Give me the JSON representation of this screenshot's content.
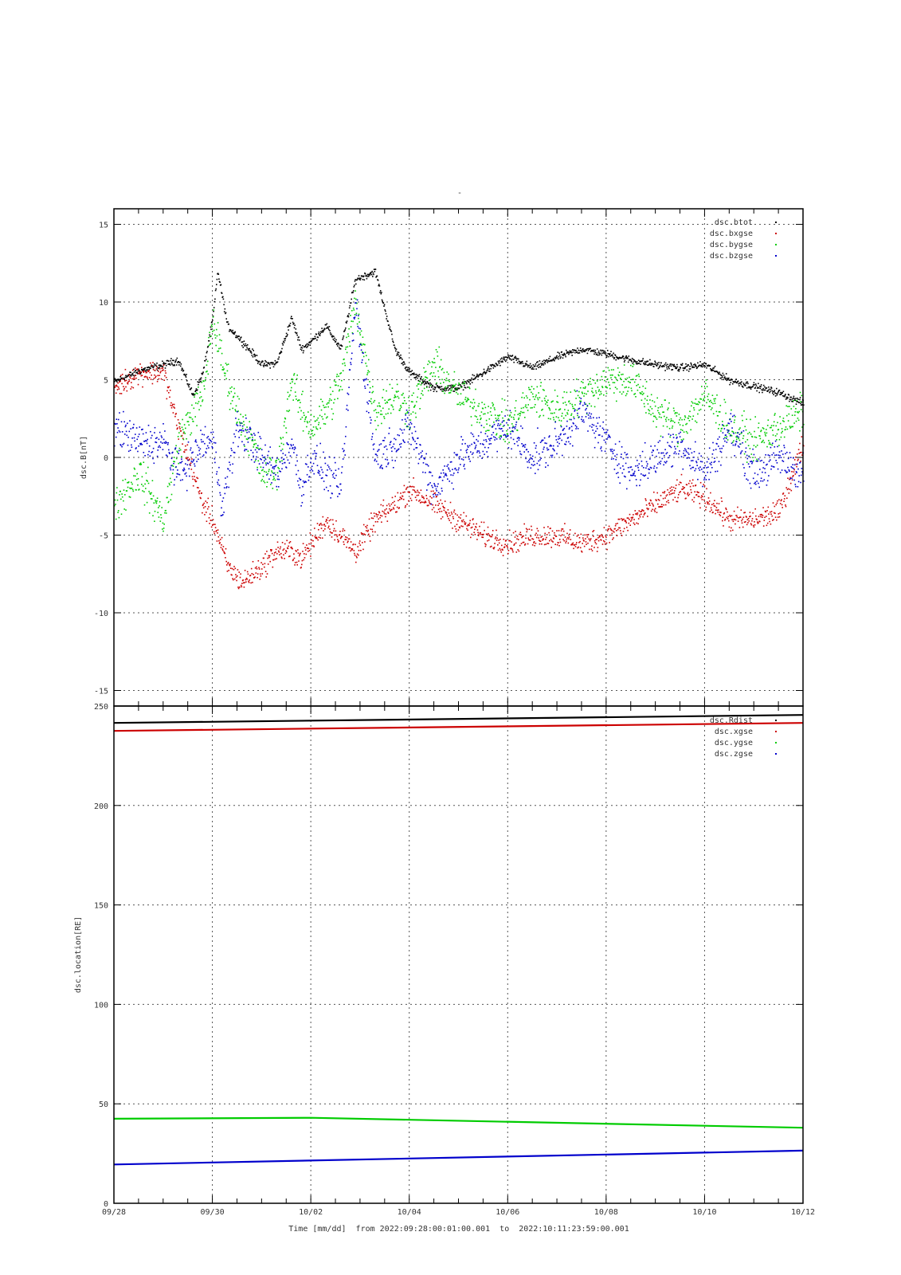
{
  "page_title_mark": "-",
  "footer": {
    "label": "Time [mm/dd]  from 2022:09:28:00:01:00.001  to  2022:10:11:23:59:00.001"
  },
  "x_axis": {
    "tick_labels": [
      "09/28",
      "09/30",
      "10/02",
      "10/04",
      "10/06",
      "10/08",
      "10/10",
      "10/12"
    ],
    "range_days": [
      0,
      14
    ],
    "major_step_days": 2,
    "minor_step_days": 0.5
  },
  "colors": {
    "btot": "#000000",
    "bxgse": "#cc0000",
    "bygse": "#00cc00",
    "bzgse": "#0000cc",
    "grid": "#555555"
  },
  "chart_data": [
    {
      "type": "scatter",
      "ylabel": "dsc.B[nT]",
      "ylim": [
        -16,
        16
      ],
      "yticks": [
        -15,
        -10,
        -5,
        0,
        5,
        10,
        15
      ],
      "grid": true,
      "legend_position": "top-right",
      "x_unit": "days since 09/28",
      "series": [
        {
          "name": "dsc.btot",
          "key": "btot",
          "x": [
            0,
            0.5,
            1,
            1.3,
            1.6,
            1.8,
            2,
            2.1,
            2.3,
            2.6,
            3,
            3.3,
            3.6,
            3.8,
            4,
            4.3,
            4.6,
            4.9,
            5.3,
            5.7,
            6,
            6.5,
            7,
            7.5,
            8,
            8.5,
            9,
            9.5,
            10,
            10.5,
            11,
            11.5,
            12,
            12.5,
            13,
            13.5,
            14
          ],
          "y": [
            4.9,
            5.6,
            6,
            6.3,
            4,
            5.5,
            9,
            12,
            8.5,
            7.5,
            6,
            6.1,
            9,
            7,
            7.5,
            8.5,
            7,
            11.5,
            12,
            7,
            5.5,
            4.5,
            4.5,
            5.5,
            6.5,
            5.8,
            6.5,
            7,
            6.7,
            6.3,
            6,
            5.8,
            6,
            5,
            4.6,
            4.2,
            3.5
          ]
        },
        {
          "name": "dsc.bxgse",
          "key": "bxgse",
          "x": [
            0,
            0.5,
            1,
            1.2,
            1.5,
            1.8,
            2,
            2.3,
            2.6,
            3,
            3.3,
            3.6,
            3.8,
            4,
            4.3,
            4.6,
            4.9,
            5.3,
            5.7,
            6,
            6.5,
            7,
            7.5,
            8,
            8.5,
            9,
            9.5,
            10,
            10.5,
            11,
            11.5,
            12,
            12.5,
            13,
            13.5,
            14
          ],
          "y": [
            4.5,
            5.5,
            5.5,
            3,
            0,
            -3,
            -4,
            -7,
            -8,
            -7,
            -6,
            -6,
            -6.5,
            -5.5,
            -4,
            -5,
            -6,
            -4,
            -3,
            -2,
            -3,
            -4,
            -5,
            -5.5,
            -5,
            -5,
            -5.5,
            -5,
            -4,
            -3,
            -2,
            -2.5,
            -4,
            -4,
            -3.5,
            1
          ]
        },
        {
          "name": "dsc.bygse",
          "key": "bygse",
          "x": [
            0,
            0.5,
            1,
            1.3,
            1.6,
            1.8,
            2,
            2.2,
            2.5,
            2.8,
            3,
            3.3,
            3.6,
            3.8,
            4,
            4.3,
            4.6,
            4.9,
            5.3,
            5.7,
            6,
            6.5,
            7,
            7.5,
            8,
            8.5,
            9,
            9.5,
            10,
            10.5,
            11,
            11.5,
            12,
            12.5,
            13,
            13.5,
            14
          ],
          "y": [
            -3,
            -1,
            -4,
            1,
            3,
            4,
            9,
            6,
            3,
            1,
            -1,
            -1,
            5,
            3,
            2,
            3,
            5,
            10,
            3,
            4,
            3,
            6,
            4,
            3,
            2,
            4,
            3,
            4,
            5,
            5,
            3,
            2,
            4,
            2,
            1,
            2,
            3
          ]
        },
        {
          "name": "dsc.bzgse",
          "key": "bzgse",
          "x": [
            0,
            0.5,
            1,
            1.3,
            1.6,
            1.8,
            2,
            2.2,
            2.5,
            2.8,
            3,
            3.3,
            3.6,
            3.8,
            4,
            4.3,
            4.6,
            4.9,
            5.3,
            5.7,
            6,
            6.5,
            7,
            7.5,
            8,
            8.5,
            9,
            9.5,
            10,
            10.5,
            11,
            11.5,
            12,
            12.5,
            13,
            13.5,
            14
          ],
          "y": [
            2,
            1,
            1,
            -1,
            0,
            1,
            1,
            -3,
            2,
            1,
            0,
            -1,
            1,
            -2,
            0,
            -1,
            -2,
            10,
            0,
            1,
            2,
            -2,
            0,
            1,
            2,
            0,
            1,
            3,
            1,
            -1,
            0,
            1,
            -1,
            2,
            -1,
            0,
            -1
          ]
        }
      ]
    },
    {
      "type": "line",
      "ylabel": "dsc.location[RE]",
      "ylim": [
        0,
        250
      ],
      "yticks": [
        0,
        50,
        100,
        150,
        200,
        250
      ],
      "grid": true,
      "legend_position": "top-right",
      "x_unit": "days since 09/28",
      "series": [
        {
          "name": "dsc.Rdist",
          "key": "btot",
          "x": [
            0,
            14
          ],
          "y": [
            241.5,
            245.5
          ]
        },
        {
          "name": "dsc.xgse",
          "key": "bxgse",
          "x": [
            0,
            14
          ],
          "y": [
            237.5,
            241.5
          ]
        },
        {
          "name": "dsc.ygse",
          "key": "bygse",
          "x": [
            0,
            4,
            14
          ],
          "y": [
            42.5,
            43,
            38
          ]
        },
        {
          "name": "dsc.zgse",
          "key": "bzgse",
          "x": [
            0,
            14
          ],
          "y": [
            19.5,
            26.5
          ]
        }
      ]
    }
  ]
}
